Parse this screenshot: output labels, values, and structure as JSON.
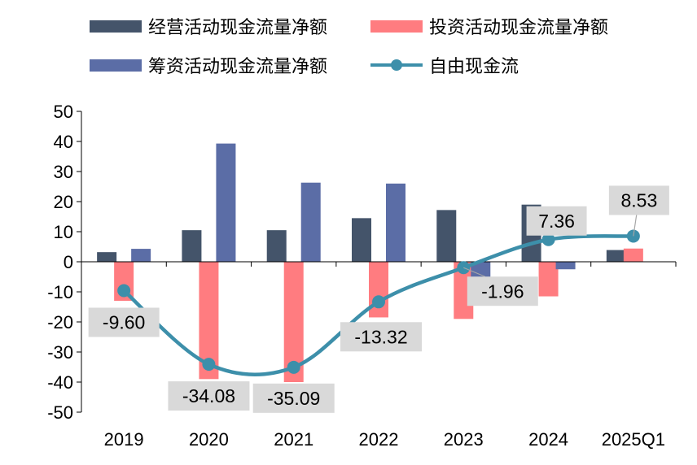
{
  "chart_data": {
    "type": "bar",
    "categories": [
      "2019",
      "2020",
      "2021",
      "2022",
      "2023",
      "2024",
      "2025Q1"
    ],
    "yticks": [
      "50",
      "40",
      "30",
      "20",
      "10",
      "0",
      "-10",
      "-20",
      "-30",
      "-40",
      "-50"
    ],
    "ylim": [
      -50,
      50
    ],
    "grid": false,
    "legend_position": "top",
    "series": [
      {
        "name": "经营活动现金流量净额",
        "kind": "bar",
        "color": "#44546A",
        "values": [
          3.2,
          10.5,
          10.5,
          14.5,
          17.2,
          19.0,
          3.9
        ]
      },
      {
        "name": "投资活动现金流量净额",
        "kind": "bar",
        "color": "#FF7C80",
        "values": [
          -13.0,
          -39.0,
          -40.0,
          -18.5,
          -19.0,
          -11.5,
          4.4
        ]
      },
      {
        "name": "筹资活动现金流量净额",
        "kind": "bar",
        "color": "#5B6DA6",
        "values": [
          4.3,
          39.3,
          26.3,
          26.0,
          -13.0,
          -2.5,
          0
        ]
      },
      {
        "name": "自由现金流",
        "kind": "line",
        "color": "#3D8FAA",
        "values": [
          -9.6,
          -34.08,
          -35.09,
          -13.32,
          -1.96,
          7.36,
          8.53
        ],
        "labels": [
          "-9.60",
          "-34.08",
          "-35.09",
          "-13.32",
          "-1.96",
          "7.36",
          "8.53"
        ]
      }
    ]
  }
}
